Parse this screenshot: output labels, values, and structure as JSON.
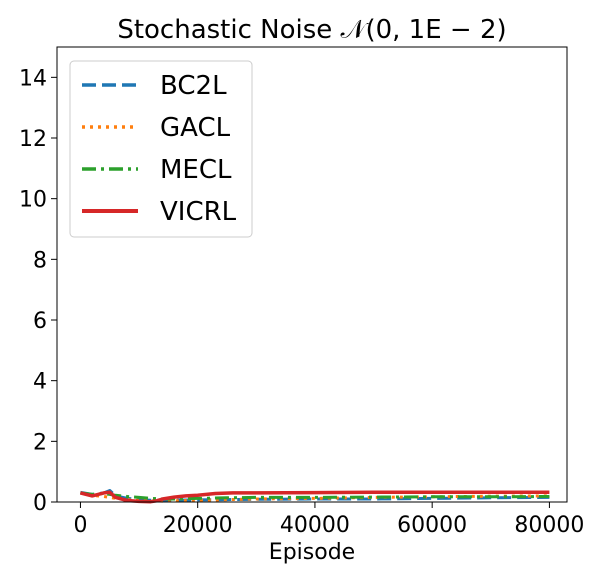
{
  "chart_data": {
    "type": "line",
    "title": "Stochastic Noise 𝒩(0, 1E − 2)",
    "xlabel": "Episode",
    "ylabel": "",
    "xlim": [
      -4000,
      83000
    ],
    "ylim": [
      0,
      15
    ],
    "xticks": [
      0,
      20000,
      40000,
      60000,
      80000
    ],
    "xtick_labels": [
      "0",
      "20000",
      "40000",
      "60000",
      "80000"
    ],
    "yticks": [
      0,
      2,
      4,
      6,
      8,
      10,
      12,
      14
    ],
    "ytick_labels": [
      "0",
      "2",
      "4",
      "6",
      "8",
      "10",
      "12",
      "14"
    ],
    "grid": false,
    "legend_position": "top-left",
    "series": [
      {
        "name": "BC2L",
        "color": "#1f77b4",
        "style": "dashed",
        "x": [
          0,
          2000,
          4000,
          5000,
          6000,
          8000,
          10000,
          12000,
          14000,
          16000,
          20000,
          25000,
          30000,
          40000,
          50000,
          60000,
          70000,
          80000
        ],
        "y": [
          0.32,
          0.25,
          0.3,
          0.38,
          0.2,
          0.12,
          0.08,
          0.06,
          0.05,
          0.06,
          0.07,
          0.08,
          0.09,
          0.1,
          0.1,
          0.12,
          0.14,
          0.15
        ]
      },
      {
        "name": "GACL",
        "color": "#ff7f0e",
        "style": "dotted",
        "x": [
          0,
          2000,
          4000,
          6000,
          8000,
          10000,
          12000,
          14000,
          16000,
          20000,
          25000,
          30000,
          40000,
          50000,
          60000,
          70000,
          80000
        ],
        "y": [
          0.3,
          0.22,
          0.18,
          0.12,
          0.08,
          0.05,
          0.04,
          0.03,
          0.04,
          0.05,
          0.08,
          0.1,
          0.12,
          0.15,
          0.17,
          0.19,
          0.2
        ]
      },
      {
        "name": "MECL",
        "color": "#2ca02c",
        "style": "dashdot",
        "x": [
          0,
          2000,
          4000,
          6000,
          8000,
          10000,
          12000,
          14000,
          16000,
          20000,
          25000,
          30000,
          40000,
          50000,
          60000,
          70000,
          80000
        ],
        "y": [
          0.3,
          0.25,
          0.28,
          0.22,
          0.18,
          0.15,
          0.12,
          0.1,
          0.1,
          0.12,
          0.14,
          0.15,
          0.15,
          0.16,
          0.17,
          0.17,
          0.18
        ]
      },
      {
        "name": "VICRL",
        "color": "#d62728",
        "style": "solid",
        "x": [
          0,
          2000,
          4000,
          5000,
          6000,
          8000,
          10000,
          12000,
          13000,
          14000,
          16000,
          18000,
          20000,
          23000,
          26000,
          30000,
          40000,
          50000,
          60000,
          70000,
          80000
        ],
        "y": [
          0.3,
          0.2,
          0.3,
          0.32,
          0.15,
          0.05,
          0.02,
          0.01,
          0.04,
          0.1,
          0.16,
          0.2,
          0.22,
          0.28,
          0.3,
          0.3,
          0.31,
          0.32,
          0.32,
          0.32,
          0.32
        ]
      }
    ]
  }
}
